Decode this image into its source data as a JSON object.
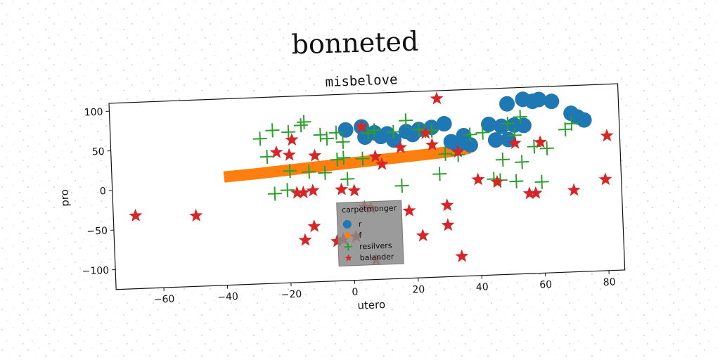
{
  "chart_data": {
    "type": "scatter",
    "suptitle": "bonneted",
    "title": "misbelove",
    "xlabel": "utero",
    "ylabel": "pro",
    "xlim": [
      -75,
      85
    ],
    "ylim": [
      -125,
      110
    ],
    "xticks": [
      -60,
      -40,
      -20,
      0,
      20,
      40,
      60,
      80
    ],
    "yticks": [
      -100,
      -50,
      0,
      50,
      100
    ],
    "grid": false,
    "legend": {
      "title": "carpetmonger",
      "location": "lower center",
      "entries": [
        "r",
        "f",
        "resilvers",
        "balander"
      ]
    },
    "series": [
      {
        "name": "r",
        "marker": "circle",
        "color": "#1f77b4",
        "points": [
          [
            -1,
            65
          ],
          [
            4,
            68
          ],
          [
            5,
            55
          ],
          [
            8,
            60
          ],
          [
            10,
            55
          ],
          [
            12,
            58
          ],
          [
            14,
            50
          ],
          [
            18,
            60
          ],
          [
            20,
            56
          ],
          [
            22,
            62
          ],
          [
            26,
            64
          ],
          [
            30,
            68
          ],
          [
            32,
            45
          ],
          [
            34,
            40
          ],
          [
            36,
            52
          ],
          [
            38,
            40
          ],
          [
            44,
            65
          ],
          [
            46,
            45
          ],
          [
            48,
            62
          ],
          [
            50,
            45
          ],
          [
            52,
            63
          ],
          [
            55,
            62
          ],
          [
            50,
            90
          ],
          [
            55,
            95
          ],
          [
            58,
            92
          ],
          [
            60,
            94
          ],
          [
            64,
            91
          ],
          [
            70,
            75
          ],
          [
            72,
            70
          ],
          [
            74,
            66
          ]
        ]
      },
      {
        "name": "f",
        "marker": "band",
        "color": "#ff7f0e",
        "points": [
          [
            -38,
            12
          ],
          [
            -30,
            14
          ],
          [
            -20,
            17
          ],
          [
            -10,
            20
          ],
          [
            0,
            23
          ],
          [
            10,
            26
          ],
          [
            20,
            29
          ],
          [
            30,
            32
          ],
          [
            36,
            35
          ]
        ]
      },
      {
        "name": "resilvers",
        "marker": "plus",
        "color": "#2ca02c",
        "points": [
          [
            -28,
            58
          ],
          [
            -24,
            68
          ],
          [
            -26,
            35
          ],
          [
            -19,
            65
          ],
          [
            -15,
            73
          ],
          [
            -14,
            77
          ],
          [
            -9,
            60
          ],
          [
            -7,
            55
          ],
          [
            -4,
            62
          ],
          [
            -2,
            50
          ],
          [
            -4,
            28
          ],
          [
            -2,
            30
          ],
          [
            -1,
            3
          ],
          [
            6,
            60
          ],
          [
            8,
            63
          ],
          [
            14,
            60
          ],
          [
            18,
            74
          ],
          [
            22,
            62
          ],
          [
            26,
            60
          ],
          [
            30,
            30
          ],
          [
            38,
            53
          ],
          [
            42,
            55
          ],
          [
            45,
            -4
          ],
          [
            47,
            -6
          ],
          [
            50,
            65
          ],
          [
            54,
            73
          ],
          [
            48,
            20
          ],
          [
            52,
            50
          ],
          [
            54,
            16
          ],
          [
            58,
            35
          ],
          [
            62,
            32
          ],
          [
            68,
            55
          ],
          [
            70,
            62
          ],
          [
            52,
            -8
          ],
          [
            60,
            -10
          ],
          [
            -20,
            -8
          ],
          [
            -19,
            16
          ],
          [
            -13,
            14
          ],
          [
            -8,
            12
          ],
          [
            -24,
            -12
          ],
          [
            16,
            -8
          ],
          [
            4,
            28
          ],
          [
            24,
            60
          ],
          [
            28,
            5
          ],
          [
            34,
            28
          ]
        ]
      },
      {
        "name": "balander",
        "marker": "star",
        "color": "#d62728",
        "points": [
          [
            -68,
            -33
          ],
          [
            -49,
            -36
          ],
          [
            -23,
            40
          ],
          [
            -19,
            36
          ],
          [
            -18,
            55
          ],
          [
            -11,
            34
          ],
          [
            -17,
            -12
          ],
          [
            -15,
            -12
          ],
          [
            -12,
            -10
          ],
          [
            -12,
            -55
          ],
          [
            -15,
            -72
          ],
          [
            -3,
            -10
          ],
          [
            1,
            -12
          ],
          [
            6,
            -35
          ],
          [
            -5,
            -75
          ],
          [
            -3,
            -73
          ],
          [
            4,
            -33
          ],
          [
            1,
            -70
          ],
          [
            7,
            -100
          ],
          [
            10,
            20
          ],
          [
            8,
            30
          ],
          [
            16,
            40
          ],
          [
            18,
            -40
          ],
          [
            22,
            -72
          ],
          [
            24,
            57
          ],
          [
            26,
            42
          ],
          [
            28,
            100
          ],
          [
            30,
            -35
          ],
          [
            30,
            -60
          ],
          [
            34,
            -100
          ],
          [
            34,
            32
          ],
          [
            40,
            -4
          ],
          [
            46,
            -8
          ],
          [
            52,
            40
          ],
          [
            56,
            -24
          ],
          [
            58,
            -24
          ],
          [
            60,
            40
          ],
          [
            70,
            -22
          ],
          [
            80,
            -10
          ],
          [
            81,
            45
          ],
          [
            4,
            68
          ]
        ]
      }
    ]
  }
}
